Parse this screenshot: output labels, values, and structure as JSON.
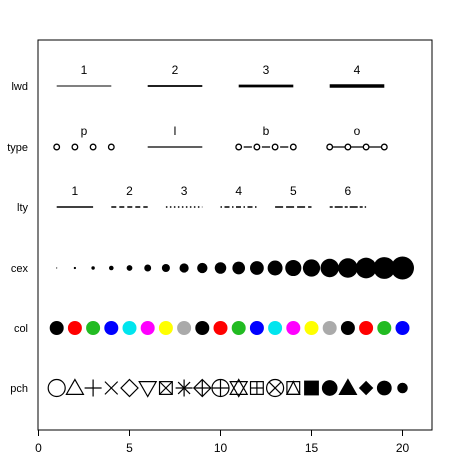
{
  "chart_data": {
    "type": {
      "x": [
        1,
        2,
        3,
        4
      ],
      "panels": [
        {
          "label": "p",
          "offset": 0
        },
        {
          "label": "l",
          "offset": 5
        },
        {
          "label": "b",
          "offset": 10
        },
        {
          "label": "o",
          "offset": 15
        }
      ]
    },
    "title": "",
    "xlabel": "",
    "ylabel": "",
    "xlim": [
      0,
      22
    ],
    "grid": false,
    "legend": "none",
    "x_ticks": [
      0,
      5,
      10,
      15,
      20
    ],
    "rows": [
      "lwd",
      "type",
      "lty",
      "cex",
      "col",
      "pch"
    ],
    "lwd": {
      "segments": [
        {
          "label": "1",
          "x": [
            1,
            4
          ],
          "lwd": 1
        },
        {
          "label": "2",
          "x": [
            6,
            9
          ],
          "lwd": 2
        },
        {
          "label": "3",
          "x": [
            11,
            14
          ],
          "lwd": 3
        },
        {
          "label": "4",
          "x": [
            16,
            19
          ],
          "lwd": 4
        }
      ]
    },
    "lty": {
      "segments": [
        {
          "label": "1",
          "x": [
            1,
            3
          ],
          "dash": "solid"
        },
        {
          "label": "2",
          "x": [
            4,
            6
          ],
          "dash": "dashed"
        },
        {
          "label": "3",
          "x": [
            7,
            9
          ],
          "dash": "dotted"
        },
        {
          "label": "4",
          "x": [
            10,
            12
          ],
          "dash": "dotdash"
        },
        {
          "label": "5",
          "x": [
            13,
            15
          ],
          "dash": "longdash"
        },
        {
          "label": "6",
          "x": [
            16,
            18
          ],
          "dash": "twodash"
        }
      ]
    },
    "cex": {
      "x": [
        1,
        2,
        3,
        4,
        5,
        6,
        7,
        8,
        9,
        10,
        11,
        12,
        13,
        14,
        15,
        16,
        17,
        18,
        19,
        20
      ],
      "sizes": [
        0.25,
        0.5,
        0.75,
        1,
        1.25,
        1.5,
        1.75,
        2,
        2.25,
        2.5,
        2.75,
        3,
        3.25,
        3.5,
        3.75,
        4,
        4.25,
        4.5,
        4.75,
        5
      ]
    },
    "col": {
      "x": [
        1,
        2,
        3,
        4,
        5,
        6,
        7,
        8,
        9,
        10,
        11,
        12,
        13,
        14,
        15,
        16,
        17,
        18,
        19,
        20
      ],
      "colors": [
        "#000000",
        "#ff0000",
        "#22bb22",
        "#0000ff",
        "#00e5ee",
        "#ff00ff",
        "#ffff00",
        "#aaaaaa",
        "#000000",
        "#ff0000",
        "#22bb22",
        "#0000ff",
        "#00e5ee",
        "#ff00ff",
        "#ffff00",
        "#aaaaaa",
        "#000000",
        "#ff0000",
        "#22bb22",
        "#0000ff"
      ]
    },
    "pch": {
      "x": [
        1,
        2,
        3,
        4,
        5,
        6,
        7,
        8,
        9,
        10,
        11,
        12,
        13,
        14,
        15,
        16,
        17,
        18,
        19,
        20
      ],
      "codes": [
        1,
        2,
        3,
        4,
        5,
        6,
        7,
        8,
        9,
        10,
        11,
        12,
        13,
        14,
        15,
        16,
        17,
        18,
        19,
        20
      ]
    }
  }
}
